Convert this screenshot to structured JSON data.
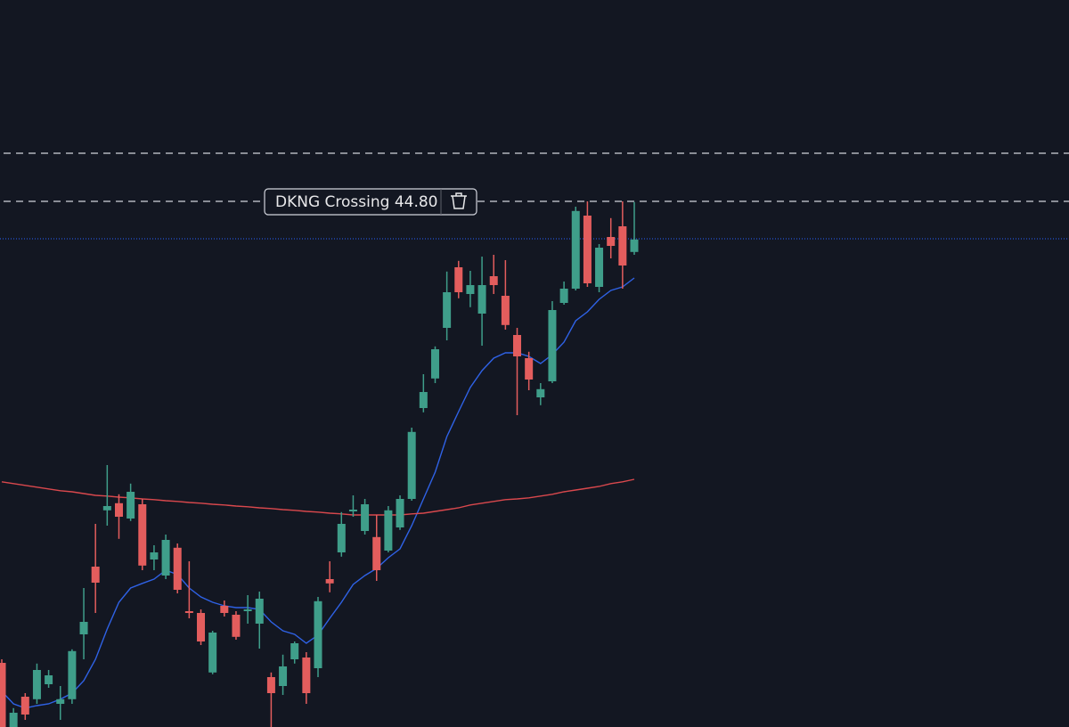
{
  "chart_data": {
    "type": "candlestick",
    "ylim": [
      30.05,
      50.45
    ],
    "up_color": "#3f9e8a",
    "down_color": "#e35d5d",
    "background": "#131722",
    "ohlc": {
      "open": [
        31.85,
        30.05,
        30.9,
        30.83,
        31.25,
        30.7,
        30.83,
        32.65,
        34.55,
        36.13,
        36.33,
        35.9,
        36.3,
        34.75,
        34.3,
        35.08,
        33.3,
        33.25,
        31.58,
        33.45,
        33.2,
        33.3,
        32.95,
        31.45,
        31.2,
        31.95,
        32.0,
        31.7,
        34.2,
        34.95,
        36.1,
        35.55,
        35.38,
        35.0,
        35.65,
        36.45,
        39.0,
        39.83,
        41.25,
        42.95,
        42.2,
        41.65,
        42.7,
        42.15,
        41.05,
        40.4,
        39.3,
        39.75,
        41.95,
        42.35,
        44.4,
        42.4,
        43.8,
        44.1,
        43.38
      ],
      "high": [
        31.95,
        30.58,
        31.0,
        31.83,
        31.65,
        31.2,
        32.23,
        33.95,
        35.75,
        37.4,
        36.58,
        36.88,
        36.45,
        35.15,
        35.45,
        35.2,
        34.7,
        33.35,
        32.75,
        33.6,
        33.3,
        33.75,
        33.85,
        31.58,
        32.08,
        32.45,
        32.15,
        33.7,
        34.7,
        36.08,
        36.55,
        36.45,
        36.0,
        36.25,
        36.55,
        38.45,
        39.95,
        40.73,
        42.83,
        43.13,
        42.85,
        43.25,
        43.3,
        43.15,
        41.25,
        40.58,
        39.7,
        42.0,
        42.55,
        44.65,
        44.8,
        43.6,
        44.33,
        44.8,
        44.78
      ],
      "low": [
        30.05,
        30.05,
        30.25,
        30.7,
        31.15,
        30.25,
        30.7,
        31.95,
        33.25,
        35.7,
        35.33,
        35.83,
        34.45,
        34.45,
        34.2,
        33.8,
        33.1,
        32.35,
        31.53,
        33.15,
        32.5,
        32.95,
        32.25,
        30.05,
        30.95,
        31.83,
        30.7,
        31.45,
        33.83,
        34.83,
        35.95,
        35.45,
        34.15,
        34.95,
        35.58,
        36.4,
        38.88,
        39.7,
        40.9,
        42.08,
        41.83,
        40.75,
        42.2,
        41.2,
        38.8,
        39.5,
        39.08,
        39.7,
        41.9,
        42.3,
        42.4,
        42.25,
        43.2,
        42.35,
        43.3
      ],
      "close": [
        30.05,
        30.45,
        30.4,
        31.65,
        31.5,
        30.83,
        32.18,
        33.0,
        34.1,
        36.25,
        35.95,
        36.65,
        34.58,
        34.95,
        35.3,
        33.9,
        33.25,
        32.45,
        32.7,
        33.25,
        32.58,
        33.35,
        33.65,
        31.0,
        31.75,
        32.4,
        31.0,
        33.58,
        34.08,
        35.75,
        36.15,
        36.3,
        34.45,
        36.13,
        36.45,
        38.33,
        39.45,
        40.65,
        42.25,
        42.25,
        42.45,
        42.45,
        42.45,
        41.33,
        40.45,
        39.8,
        39.53,
        41.75,
        42.35,
        44.53,
        42.5,
        43.5,
        43.55,
        43.0,
        43.73
      ]
    },
    "lines": [
      {
        "color": "#2f62e6",
        "values": [
          31.05,
          30.7,
          30.58,
          30.65,
          30.7,
          30.83,
          31.0,
          31.35,
          31.95,
          32.8,
          33.55,
          33.95,
          34.08,
          34.2,
          34.45,
          34.33,
          33.95,
          33.7,
          33.55,
          33.45,
          33.4,
          33.4,
          33.35,
          33.0,
          32.75,
          32.65,
          32.4,
          32.63,
          33.1,
          33.55,
          34.05,
          34.3,
          34.5,
          34.8,
          35.05,
          35.7,
          36.45,
          37.2,
          38.2,
          38.9,
          39.58,
          40.05,
          40.4,
          40.55,
          40.55,
          40.45,
          40.25,
          40.5,
          40.85,
          41.45,
          41.7,
          42.05,
          42.3,
          42.4,
          42.65
        ]
      },
      {
        "color": "#d9484d",
        "values": [
          36.93,
          36.88,
          36.83,
          36.78,
          36.73,
          36.68,
          36.65,
          36.6,
          36.55,
          36.53,
          36.5,
          36.48,
          36.45,
          36.43,
          36.4,
          36.38,
          36.35,
          36.33,
          36.3,
          36.28,
          36.25,
          36.23,
          36.2,
          36.18,
          36.15,
          36.13,
          36.1,
          36.08,
          36.05,
          36.03,
          36.0,
          36.0,
          36.0,
          36.0,
          36.0,
          36.03,
          36.05,
          36.1,
          36.15,
          36.2,
          36.28,
          36.33,
          36.38,
          36.43,
          36.45,
          36.48,
          36.53,
          36.58,
          36.65,
          36.7,
          36.75,
          36.8,
          36.88,
          36.93,
          37.0
        ]
      }
    ],
    "alerts": [
      {
        "value": 46.15
      },
      {
        "value": 44.8,
        "label": "DKNG Crossing 44.80"
      }
    ],
    "alert_color": "#d1d4dc",
    "price_line": {
      "value": 43.75,
      "color": "#2962ff"
    }
  }
}
